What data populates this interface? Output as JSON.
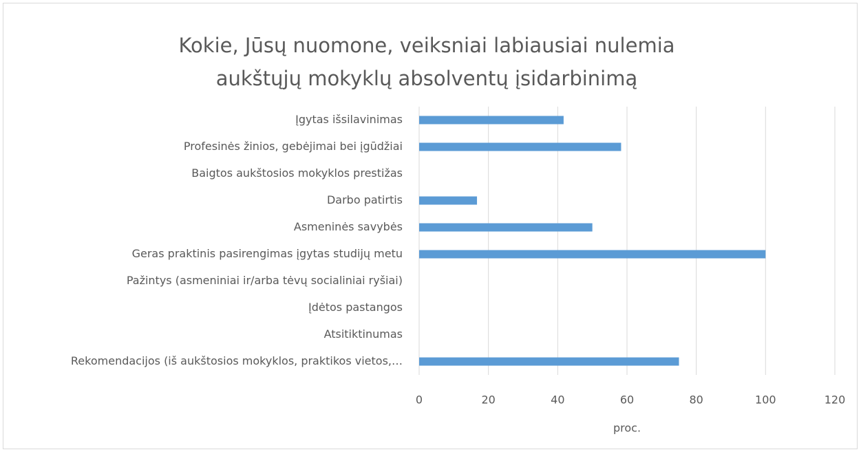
{
  "chart_data": {
    "type": "hbar",
    "title": "Kokie, Jūsų nuomone, veiksniai labiausiai nulemia aukštųjų mokyklų absolventų įsidarbinimą",
    "categories": [
      "Įgytas išsilavinimas",
      "Profesinės žinios, gebėjimai bei įgūdžiai",
      "Baigtos aukštosios mokyklos prestižas",
      "Darbo patirtis",
      "Asmeninės savybės",
      "Geras praktinis pasirengimas įgytas studijų metu",
      "Pažintys (asmeniniai ir/arba tėvų socialiniai ryšiai)",
      "Įdėtos pastangos",
      "Atsitiktinumas",
      "Rekomendacijos (iš aukštosios mokyklos, praktikos vietos,…"
    ],
    "values": [
      41.7,
      58.3,
      0,
      16.7,
      50,
      100,
      0,
      0,
      0,
      75
    ],
    "color": "#5b9bd5",
    "xlabel": "proc.",
    "xlim": [
      0,
      120
    ],
    "xticks": [
      0,
      20,
      40,
      60,
      80,
      100,
      120
    ],
    "grid": true
  }
}
